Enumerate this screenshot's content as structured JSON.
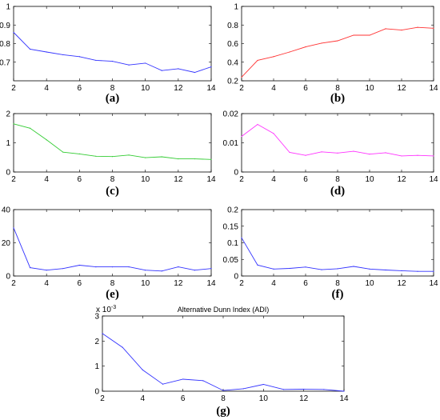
{
  "chart_data": [
    {
      "type": "line",
      "sublabel": "(a)",
      "title": "",
      "x": [
        2,
        3,
        4,
        5,
        6,
        7,
        8,
        9,
        10,
        11,
        12,
        13,
        14
      ],
      "series": [
        {
          "color": "#3333ff",
          "values": [
            0.86,
            0.77,
            0.755,
            0.74,
            0.73,
            0.71,
            0.705,
            0.685,
            0.695,
            0.655,
            0.665,
            0.645,
            0.675
          ]
        }
      ],
      "xlim": [
        2,
        14
      ],
      "ylim": [
        0.6,
        1.0
      ],
      "xticks": [
        2,
        4,
        6,
        8,
        10,
        12,
        14
      ],
      "yticks": [
        0.7,
        0.8,
        0.9,
        1
      ],
      "xticklabels": [
        "2",
        "4",
        "6",
        "8",
        "10",
        "12",
        "14"
      ],
      "yticklabels": [
        "0.7",
        "0.8",
        "0.9",
        "1"
      ]
    },
    {
      "type": "line",
      "sublabel": "(b)",
      "title": "",
      "x": [
        2,
        3,
        4,
        5,
        6,
        7,
        8,
        9,
        10,
        11,
        12,
        13,
        14
      ],
      "series": [
        {
          "color": "#ff3333",
          "values": [
            0.24,
            0.42,
            0.46,
            0.51,
            0.565,
            0.605,
            0.63,
            0.69,
            0.69,
            0.76,
            0.745,
            0.775,
            0.765
          ]
        }
      ],
      "xlim": [
        2,
        14
      ],
      "ylim": [
        0.2,
        1.0
      ],
      "xticks": [
        2,
        4,
        6,
        8,
        10,
        12,
        14
      ],
      "yticks": [
        0.2,
        0.4,
        0.6,
        0.8,
        1
      ],
      "xticklabels": [
        "2",
        "4",
        "6",
        "8",
        "10",
        "12",
        "14"
      ],
      "yticklabels": [
        "0.2",
        "0.4",
        "0.6",
        "0.8",
        "1"
      ]
    },
    {
      "type": "line",
      "sublabel": "(c)",
      "title": "",
      "x": [
        2,
        3,
        4,
        5,
        6,
        7,
        8,
        9,
        10,
        11,
        12,
        13,
        14
      ],
      "series": [
        {
          "color": "#33cc33",
          "values": [
            1.65,
            1.5,
            1.1,
            0.68,
            0.62,
            0.54,
            0.53,
            0.58,
            0.49,
            0.52,
            0.45,
            0.45,
            0.43
          ]
        }
      ],
      "xlim": [
        2,
        14
      ],
      "ylim": [
        0,
        2
      ],
      "xticks": [
        2,
        4,
        6,
        8,
        10,
        12,
        14
      ],
      "yticks": [
        0,
        1,
        2
      ],
      "xticklabels": [
        "2",
        "4",
        "6",
        "8",
        "10",
        "12",
        "14"
      ],
      "yticklabels": [
        "0",
        "1",
        "2"
      ]
    },
    {
      "type": "line",
      "sublabel": "(d)",
      "title": "",
      "x": [
        2,
        3,
        4,
        5,
        6,
        7,
        8,
        9,
        10,
        11,
        12,
        13,
        14
      ],
      "series": [
        {
          "color": "#ff33ff",
          "values": [
            0.0122,
            0.0163,
            0.0132,
            0.0067,
            0.0057,
            0.0069,
            0.0065,
            0.0071,
            0.0061,
            0.0066,
            0.0055,
            0.0057,
            0.0055
          ]
        }
      ],
      "xlim": [
        2,
        14
      ],
      "ylim": [
        0,
        0.02
      ],
      "xticks": [
        2,
        4,
        6,
        8,
        10,
        12,
        14
      ],
      "yticks": [
        0,
        0.01,
        0.02
      ],
      "xticklabels": [
        "2",
        "4",
        "6",
        "8",
        "10",
        "12",
        "14"
      ],
      "yticklabels": [
        "0",
        "0.01",
        "0.02"
      ]
    },
    {
      "type": "line",
      "sublabel": "(e)",
      "title": "",
      "x": [
        2,
        3,
        4,
        5,
        6,
        7,
        8,
        9,
        10,
        11,
        12,
        13,
        14
      ],
      "series": [
        {
          "color": "#3333ff",
          "values": [
            29,
            5,
            3.5,
            4.5,
            6.5,
            5.5,
            5.5,
            5.5,
            3.5,
            3,
            5.5,
            3.5,
            4.5
          ]
        }
      ],
      "xlim": [
        2,
        14
      ],
      "ylim": [
        0,
        40
      ],
      "xticks": [
        2,
        4,
        6,
        8,
        10,
        12,
        14
      ],
      "yticks": [
        0,
        20,
        40
      ],
      "xticklabels": [
        "2",
        "4",
        "6",
        "8",
        "10",
        "12",
        "14"
      ],
      "yticklabels": [
        "0",
        "20",
        "40"
      ]
    },
    {
      "type": "line",
      "sublabel": "(f)",
      "title": "",
      "x": [
        2,
        3,
        4,
        5,
        6,
        7,
        8,
        9,
        10,
        11,
        12,
        13,
        14
      ],
      "series": [
        {
          "color": "#3333ff",
          "values": [
            0.115,
            0.033,
            0.021,
            0.023,
            0.027,
            0.019,
            0.022,
            0.029,
            0.021,
            0.018,
            0.016,
            0.014,
            0.014
          ]
        }
      ],
      "xlim": [
        2,
        14
      ],
      "ylim": [
        0,
        0.2
      ],
      "xticks": [
        2,
        4,
        6,
        8,
        10,
        12,
        14
      ],
      "yticks": [
        0,
        0.05,
        0.1,
        0.15,
        0.2
      ],
      "xticklabels": [
        "2",
        "4",
        "6",
        "8",
        "10",
        "12",
        "14"
      ],
      "yticklabels": [
        "0",
        "0.05",
        "0.1",
        "0.15",
        "0.2"
      ]
    },
    {
      "type": "line",
      "sublabel": "(g)",
      "title": "Alternative Dunn Index (ADI)",
      "exponent": "x 10",
      "exponent_power": "-3",
      "x": [
        2,
        3,
        4,
        5,
        6,
        7,
        8,
        9,
        10,
        11,
        12,
        13,
        14
      ],
      "series": [
        {
          "color": "#3333ff",
          "values": [
            2.3,
            1.75,
            0.85,
            0.28,
            0.48,
            0.42,
            0.03,
            0.1,
            0.27,
            0.07,
            0.08,
            0.07,
            0.0
          ]
        }
      ],
      "xlim": [
        2,
        14
      ],
      "ylim": [
        0,
        3
      ],
      "xticks": [
        2,
        4,
        6,
        8,
        10,
        12,
        14
      ],
      "yticks": [
        0,
        1,
        2,
        3
      ],
      "xticklabels": [
        "2",
        "4",
        "6",
        "8",
        "10",
        "12",
        "14"
      ],
      "yticklabels": [
        "0",
        "1",
        "2",
        "3"
      ]
    }
  ]
}
